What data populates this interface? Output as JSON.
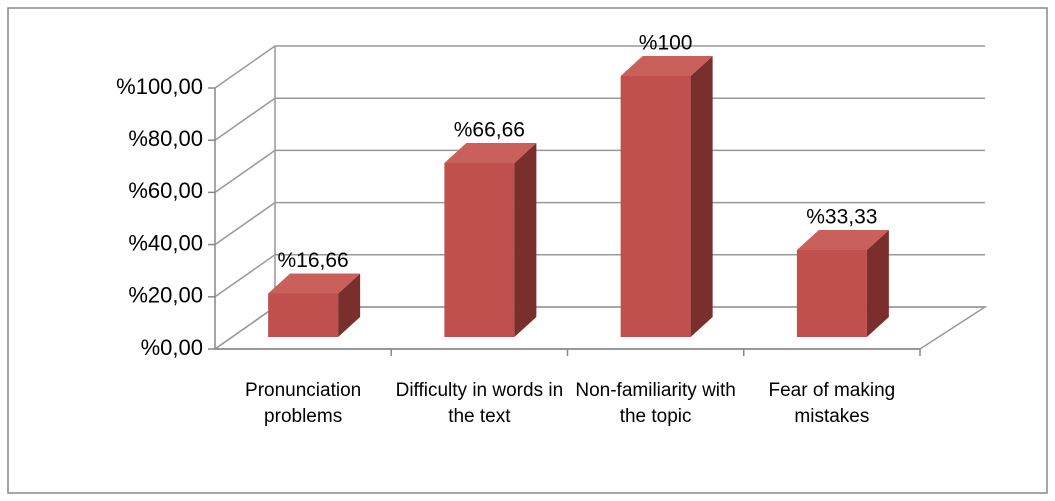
{
  "chart_data": {
    "type": "bar3d",
    "categories": [
      "Pronunciation problems",
      "Difficulty in words in the text",
      "Non-familiarity with the topic",
      "Fear of making mistakes"
    ],
    "values": [
      16.66,
      66.66,
      100,
      33.33
    ],
    "value_labels": [
      "%16,66",
      "%66,66",
      "%100",
      "%33,33"
    ],
    "color": "#c0504d",
    "ylim": [
      0,
      100
    ],
    "yticks": [
      {
        "value": 0,
        "label": "%0,00"
      },
      {
        "value": 20,
        "label": "%20,00"
      },
      {
        "value": 40,
        "label": "%40,00"
      },
      {
        "value": 60,
        "label": "%60,00"
      },
      {
        "value": 80,
        "label": "%80,00"
      },
      {
        "value": 100,
        "label": "%100,00"
      }
    ],
    "grid": true
  }
}
